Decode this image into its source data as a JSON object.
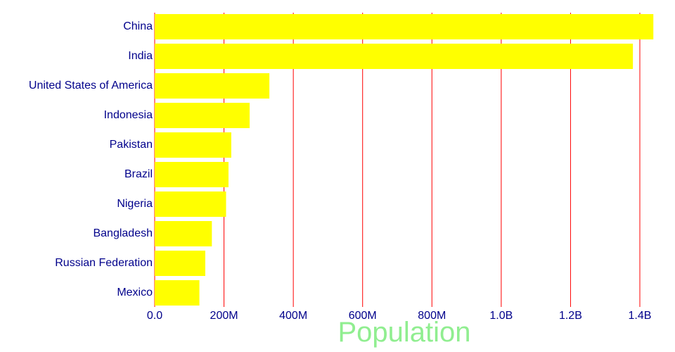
{
  "chart_data": {
    "type": "bar",
    "orientation": "horizontal",
    "title": "",
    "xlabel": "Population",
    "ylabel": "",
    "xlim": [
      0,
      1400000000
    ],
    "grid": true,
    "categories": [
      "China",
      "India",
      "United States of America",
      "Indonesia",
      "Pakistan",
      "Brazil",
      "Nigeria",
      "Bangladesh",
      "Russian Federation",
      "Mexico"
    ],
    "values": [
      1439000000,
      1380000000,
      331000000,
      274000000,
      221000000,
      213000000,
      206000000,
      165000000,
      146000000,
      129000000
    ],
    "x_ticks": [
      {
        "value": 0,
        "label": "0.0"
      },
      {
        "value": 200000000,
        "label": "200M"
      },
      {
        "value": 400000000,
        "label": "400M"
      },
      {
        "value": 600000000,
        "label": "600M"
      },
      {
        "value": 800000000,
        "label": "800M"
      },
      {
        "value": 1000000000,
        "label": "1.0B"
      },
      {
        "value": 1200000000,
        "label": "1.2B"
      },
      {
        "value": 1400000000,
        "label": "1.4B"
      }
    ],
    "colors": {
      "bar": "#ffff00",
      "grid": "#ff0000",
      "category_label": "#00008b",
      "tick_label": "#00008b",
      "axis_title": "#90ee90",
      "background": "#ffffff"
    }
  }
}
